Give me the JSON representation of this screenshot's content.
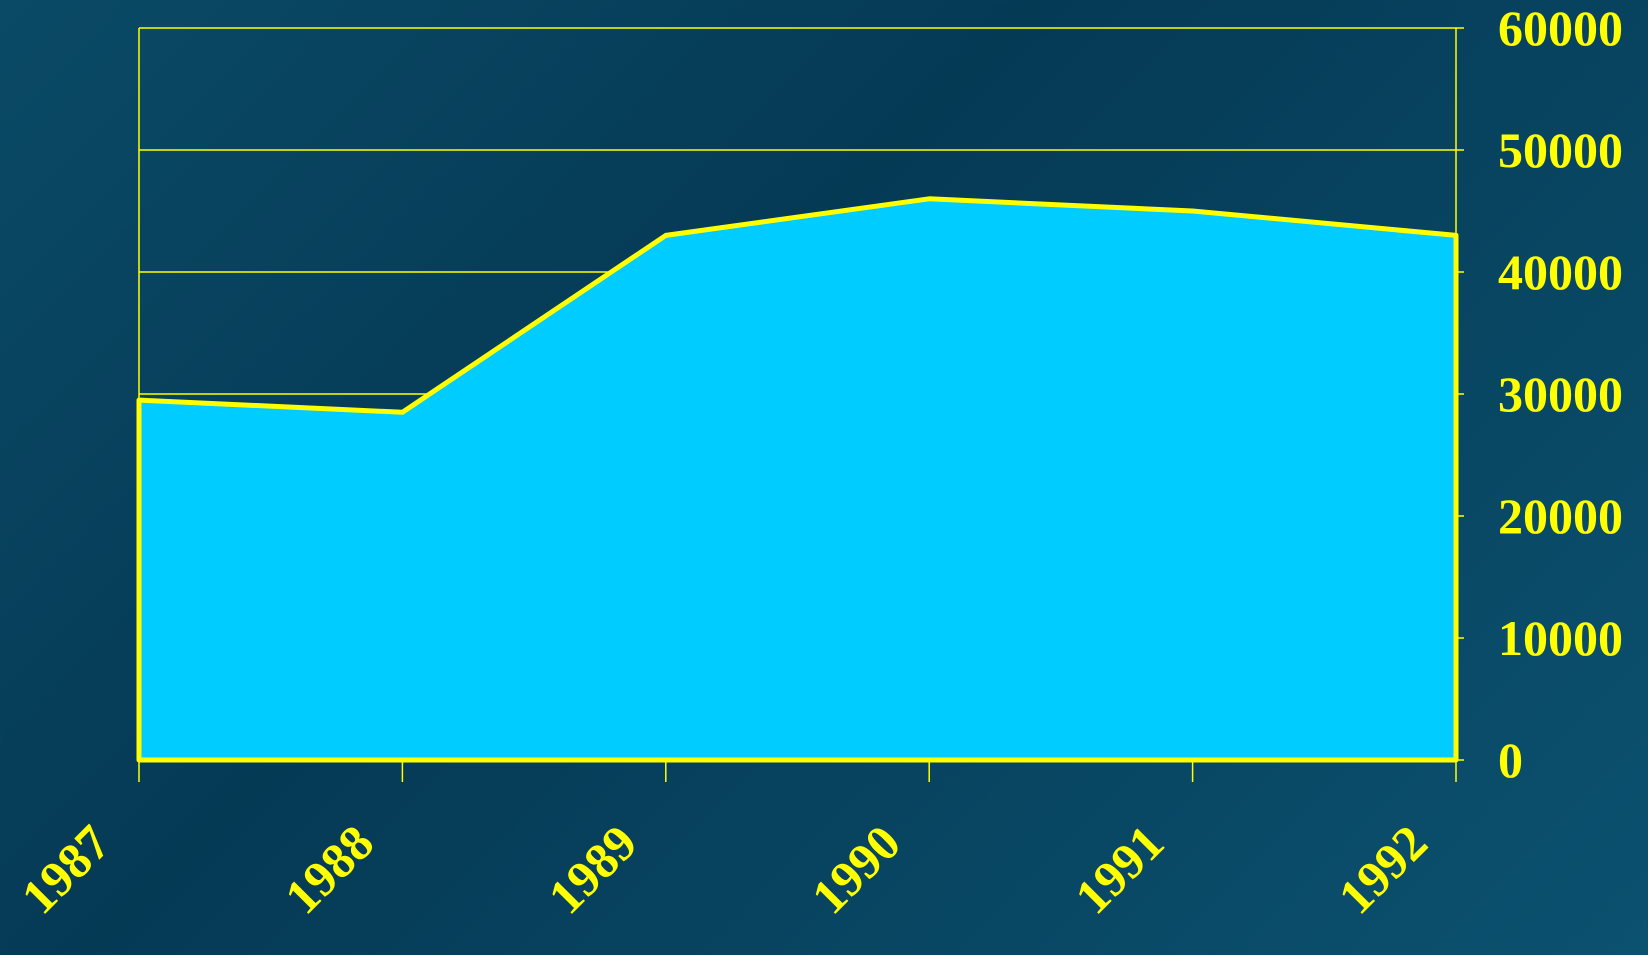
{
  "chart_data": {
    "type": "area",
    "categories": [
      "1987",
      "1988",
      "1989",
      "1990",
      "1991",
      "1992"
    ],
    "values": [
      29500,
      28500,
      43000,
      46000,
      45000,
      43000
    ],
    "color": "#00ccff",
    "line_color": "#ffff00",
    "ylim": [
      0,
      60000
    ],
    "yticks": [
      0,
      10000,
      20000,
      30000,
      40000,
      50000,
      60000
    ],
    "y_axis_side": "right",
    "grid": true
  }
}
